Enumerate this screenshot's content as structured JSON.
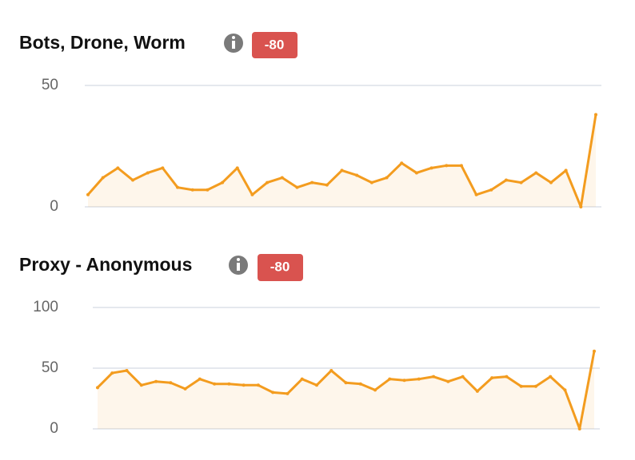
{
  "chart_data": [
    {
      "type": "line",
      "title": "Bots, Drone, Worm",
      "badge": "-80",
      "color": "#f39c1f",
      "x": [
        1,
        2,
        3,
        4,
        5,
        6,
        7,
        8,
        9,
        10,
        11,
        12,
        13,
        14,
        15,
        16,
        17,
        18,
        19,
        20,
        21,
        22,
        23,
        24,
        25,
        26,
        27,
        28,
        29,
        30,
        31,
        32,
        33,
        34,
        35
      ],
      "xlim": [
        1,
        35
      ],
      "values": [
        5,
        12,
        16,
        11,
        14,
        16,
        8,
        7,
        7,
        10,
        16,
        5,
        10,
        12,
        8,
        10,
        9,
        15,
        13,
        10,
        12,
        18,
        14,
        16,
        17,
        17,
        5,
        7,
        11,
        10,
        14,
        10,
        15,
        0,
        38
      ],
      "ylim": [
        0,
        50
      ],
      "yticks": [
        0,
        50
      ],
      "grid": true
    },
    {
      "type": "line",
      "title": "Proxy - Anonymous",
      "badge": "-80",
      "color": "#f39c1f",
      "x": [
        1,
        2,
        3,
        4,
        5,
        6,
        7,
        8,
        9,
        10,
        11,
        12,
        13,
        14,
        15,
        16,
        17,
        18,
        19,
        20,
        21,
        22,
        23,
        24,
        25,
        26,
        27,
        28,
        29,
        30,
        31,
        32,
        33,
        34,
        35
      ],
      "xlim": [
        1,
        35
      ],
      "values": [
        34,
        46,
        48,
        36,
        39,
        38,
        33,
        41,
        37,
        37,
        36,
        36,
        30,
        29,
        41,
        36,
        48,
        38,
        37,
        32,
        41,
        40,
        41,
        43,
        39,
        43,
        31,
        42,
        43,
        35,
        35,
        43,
        32,
        0,
        64
      ],
      "ylim": [
        0,
        100
      ],
      "yticks": [
        0,
        50,
        100
      ],
      "grid": true
    }
  ]
}
